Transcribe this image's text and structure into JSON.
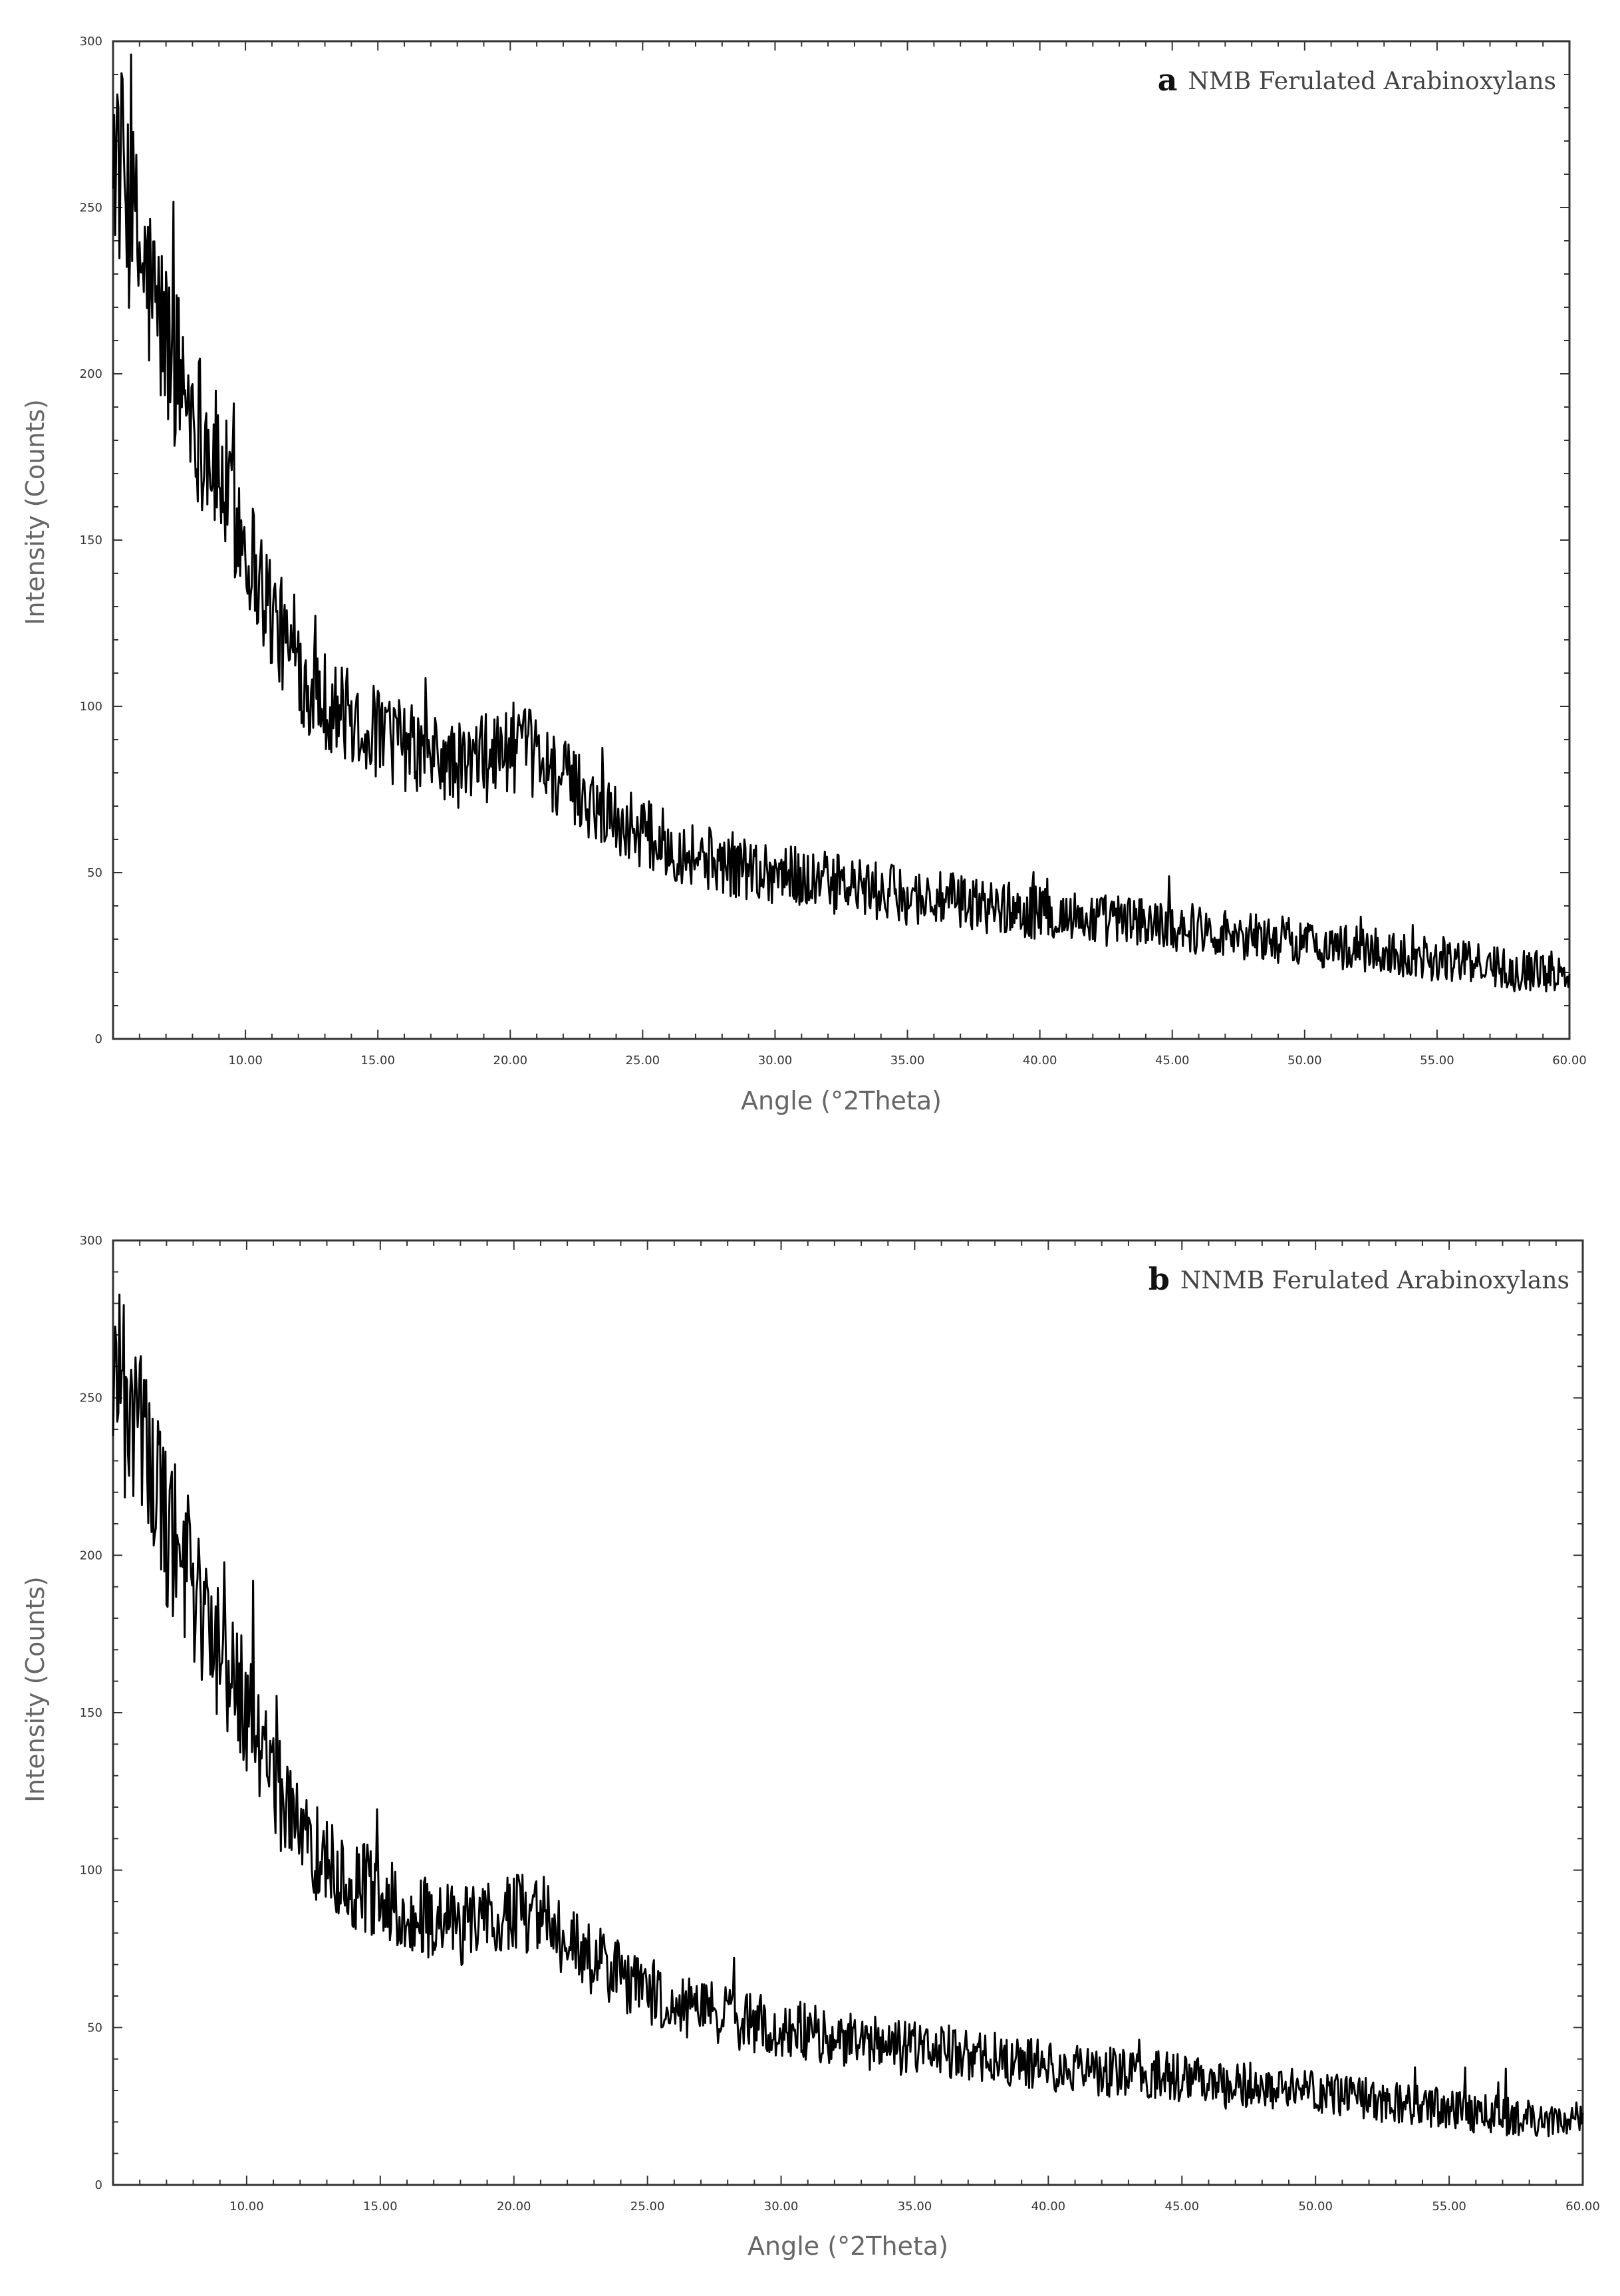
{
  "chart_data": [
    {
      "type": "line",
      "panel_letter": "a",
      "title": "NMB Ferulated Arabinoxylans",
      "xlabel": "Angle (°2Theta)",
      "ylabel": "Intensity (Counts)",
      "xlim": [
        5,
        60
      ],
      "ylim": [
        0,
        300
      ],
      "xticks": [
        10,
        15,
        20,
        25,
        30,
        35,
        40,
        45,
        50,
        55,
        60
      ],
      "xtick_labels": [
        "10.00",
        "15.00",
        "20.00",
        "25.00",
        "30.00",
        "35.00",
        "40.00",
        "45.00",
        "50.00",
        "55.00",
        "60.00"
      ],
      "yticks": [
        0,
        50,
        100,
        150,
        200,
        250,
        300
      ],
      "ytick_labels": [
        "0",
        "50",
        "100",
        "150",
        "200",
        "250",
        "300"
      ],
      "grid": false,
      "color": "#000000",
      "x": [
        5.0,
        5.5,
        6.0,
        7.0,
        8.0,
        9.0,
        10.0,
        11.0,
        12.0,
        13.0,
        14.0,
        15.0,
        16.0,
        17.0,
        18.0,
        19.0,
        20.0,
        21.0,
        22.0,
        23.0,
        24.0,
        25.0,
        26.0,
        28.0,
        30.0,
        32.0,
        34.0,
        36.0,
        38.0,
        40.0,
        42.0,
        44.0,
        46.0,
        48.0,
        50.0,
        52.0,
        54.0,
        56.0,
        58.0,
        60.0
      ],
      "y": [
        270,
        255,
        235,
        210,
        190,
        170,
        150,
        128,
        110,
        102,
        96,
        92,
        88,
        85,
        82,
        84,
        88,
        85,
        78,
        72,
        66,
        62,
        58,
        53,
        50,
        47,
        44,
        42,
        40,
        38,
        36,
        35,
        33,
        31,
        29,
        27,
        25,
        23,
        21,
        20
      ]
    },
    {
      "type": "line",
      "panel_letter": "b",
      "title": "NNMB Ferulated Arabinoxylans",
      "xlabel": "Angle (°2Theta)",
      "ylabel": "Intensity (Counts)",
      "xlim": [
        5,
        60
      ],
      "ylim": [
        0,
        300
      ],
      "xticks": [
        10,
        15,
        20,
        25,
        30,
        35,
        40,
        45,
        50,
        55,
        60
      ],
      "xtick_labels": [
        "10.00",
        "15.00",
        "20.00",
        "25.00",
        "30.00",
        "35.00",
        "40.00",
        "45.00",
        "50.00",
        "55.00",
        "60.00"
      ],
      "yticks": [
        0,
        50,
        100,
        150,
        200,
        250,
        300
      ],
      "ytick_labels": [
        "0",
        "50",
        "100",
        "150",
        "200",
        "250",
        "300"
      ],
      "grid": false,
      "color": "#000000",
      "x": [
        5.0,
        5.5,
        6.0,
        7.0,
        8.0,
        9.0,
        10.0,
        11.0,
        12.0,
        13.0,
        14.0,
        15.0,
        16.0,
        17.0,
        18.0,
        19.0,
        20.0,
        21.0,
        22.0,
        23.0,
        24.0,
        25.0,
        26.0,
        28.0,
        30.0,
        32.0,
        34.0,
        36.0,
        38.0,
        40.0,
        42.0,
        44.0,
        46.0,
        48.0,
        50.0,
        52.0,
        54.0,
        56.0,
        58.0,
        60.0
      ],
      "y": [
        270,
        255,
        235,
        210,
        190,
        170,
        150,
        128,
        110,
        102,
        96,
        92,
        88,
        85,
        82,
        84,
        88,
        85,
        78,
        72,
        66,
        62,
        58,
        53,
        50,
        47,
        44,
        42,
        40,
        38,
        36,
        35,
        33,
        31,
        29,
        27,
        25,
        23,
        21,
        20
      ]
    }
  ]
}
